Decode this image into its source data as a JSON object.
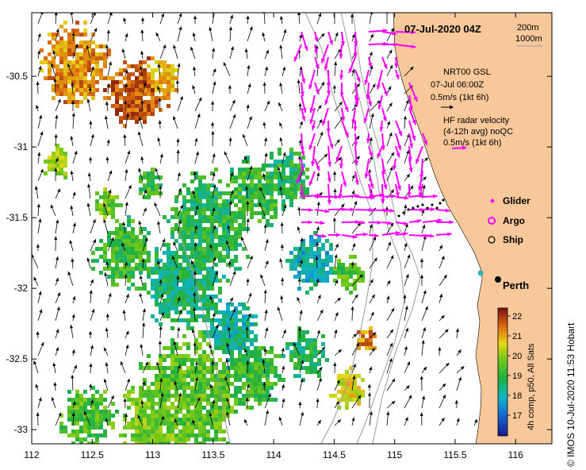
{
  "title": "07-Jul-2020 04Z",
  "depth_legend": {
    "contour_1": "200m",
    "contour_2": "1000m"
  },
  "model_legend": {
    "line1": "NRT00 GSL",
    "line2": "07-Jul 06:00Z",
    "line3": "0.5m/s (1kt 6h)"
  },
  "radar_legend": {
    "line1": "HF radar velocity",
    "line2": "(4-12h avg) noQC",
    "line3": "0.5m/s (1kt 6h)"
  },
  "markers": {
    "glider": "Glider",
    "argo": "Argo",
    "ship": "Ship"
  },
  "city": {
    "name": "Perth",
    "lon": 115.86,
    "lat": -31.95
  },
  "colorbar": {
    "label": "4h comp, p50, All Sats",
    "ticks": [
      "22",
      "21",
      "20",
      "19",
      "18",
      "17"
    ]
  },
  "credit": "© IMOS 10-Jul-2020 11:53 Hobart",
  "axes": {
    "x_ticks": [
      "112",
      "112.5",
      "113",
      "113.5",
      "114",
      "114.5",
      "115",
      "115.5",
      "116"
    ],
    "y_ticks": [
      "-30.5",
      "-31",
      "-31.5",
      "-32",
      "-32.5",
      "-33"
    ],
    "xlim": [
      112,
      116.3
    ],
    "ylim": [
      -33.1,
      -30.05
    ]
  },
  "colors": {
    "land": "#f8c89a",
    "radar_arrows": "#ff00ff",
    "model_arrows": "#000000",
    "depth_contours": "#9a9a9a"
  }
}
